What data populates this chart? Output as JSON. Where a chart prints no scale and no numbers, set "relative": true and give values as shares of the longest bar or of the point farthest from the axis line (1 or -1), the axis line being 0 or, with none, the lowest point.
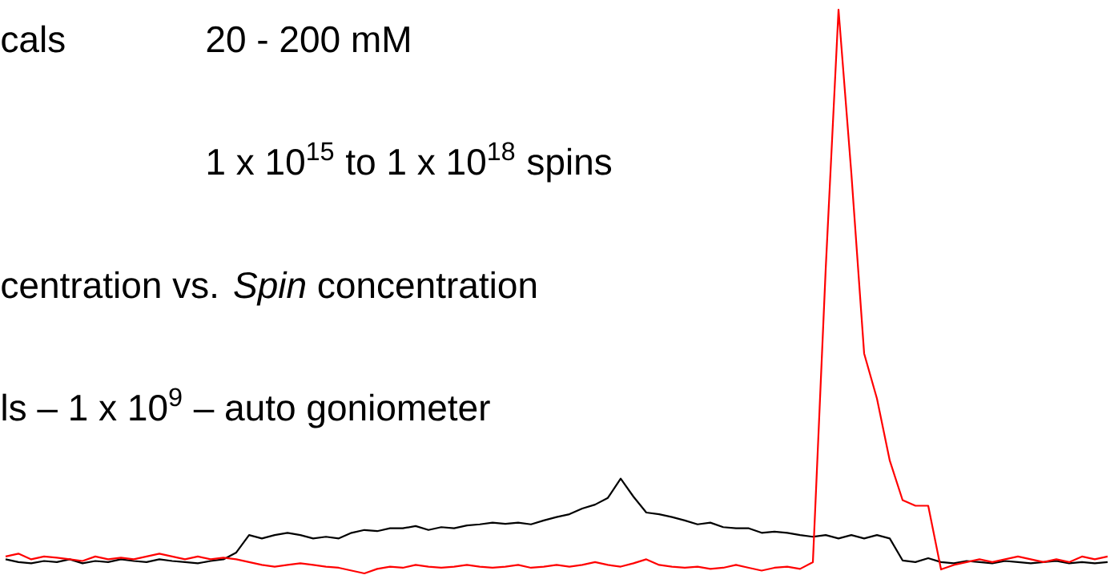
{
  "chart_data": {
    "type": "line",
    "relative": true,
    "categories": [
      null,
      null,
      null,
      null,
      null,
      null,
      null,
      null,
      null,
      null,
      null,
      null,
      null,
      null,
      null,
      null,
      null,
      null,
      null,
      null,
      null,
      null,
      null,
      null,
      null,
      null,
      null,
      null,
      null,
      null,
      null,
      null,
      null,
      null,
      null,
      null,
      null,
      null,
      null,
      null,
      null,
      null,
      null,
      null,
      null,
      null,
      null,
      null,
      null,
      null,
      null,
      null,
      null,
      null,
      null,
      null,
      null,
      null,
      null,
      null,
      null,
      null,
      null,
      null,
      null,
      null,
      null,
      null,
      null,
      null,
      null,
      null,
      null,
      null,
      null,
      null,
      null,
      null,
      null,
      null,
      null,
      null,
      null,
      null,
      null,
      null,
      null
    ],
    "series": [
      {
        "color": "#000000",
        "values": [
          0.025,
          0.02,
          0.018,
          0.022,
          0.02,
          0.025,
          0.018,
          0.022,
          0.02,
          0.025,
          0.022,
          0.02,
          0.025,
          0.022,
          0.02,
          0.018,
          0.022,
          0.025,
          0.037,
          0.068,
          0.062,
          0.068,
          0.072,
          0.068,
          0.062,
          0.065,
          0.062,
          0.072,
          0.077,
          0.075,
          0.08,
          0.08,
          0.084,
          0.077,
          0.082,
          0.08,
          0.085,
          0.087,
          0.09,
          0.088,
          0.09,
          0.087,
          0.094,
          0.1,
          0.105,
          0.115,
          0.122,
          0.134,
          0.168,
          0.136,
          0.108,
          0.105,
          0.1,
          0.094,
          0.087,
          0.09,
          0.082,
          0.08,
          0.08,
          0.072,
          0.074,
          0.072,
          0.068,
          0.065,
          0.068,
          0.062,
          0.068,
          0.062,
          0.068,
          0.062,
          0.023,
          0.02,
          0.027,
          0.02,
          0.018,
          0.022,
          0.02,
          0.018,
          0.022,
          0.02,
          0.018,
          0.02,
          0.022,
          0.018,
          0.02,
          0.018,
          0.02
        ]
      },
      {
        "color": "#ff0000",
        "values": [
          0.03,
          0.035,
          0.025,
          0.03,
          0.028,
          0.025,
          0.022,
          0.03,
          0.025,
          0.028,
          0.025,
          0.03,
          0.035,
          0.03,
          0.025,
          0.03,
          0.025,
          0.028,
          0.025,
          0.02,
          0.015,
          0.012,
          0.015,
          0.018,
          0.015,
          0.012,
          0.01,
          0.005,
          0.0,
          0.008,
          0.012,
          0.01,
          0.015,
          0.012,
          0.01,
          0.012,
          0.015,
          0.012,
          0.01,
          0.012,
          0.015,
          0.01,
          0.012,
          0.015,
          0.012,
          0.015,
          0.02,
          0.015,
          0.012,
          0.018,
          0.025,
          0.015,
          0.012,
          0.01,
          0.012,
          0.008,
          0.01,
          0.015,
          0.01,
          0.005,
          0.01,
          0.012,
          0.008,
          0.02,
          0.54,
          1,
          0.71,
          0.39,
          0.31,
          0.2,
          0.13,
          0.12,
          0.12,
          0.007,
          0.015,
          0.02,
          0.025,
          0.02,
          0.025,
          0.03,
          0.025,
          0.02,
          0.025,
          0.02,
          0.03,
          0.025,
          0.03
        ]
      }
    ],
    "annotations": [
      "cals",
      "20 - 200 mM",
      "1 x 10$^{15}$ to 1 x 10$^{18}$ spins",
      "centration vs. *Spin* concentration",
      "ls – 1 x 10$^{9}$ – auto goniometer"
    ]
  }
}
